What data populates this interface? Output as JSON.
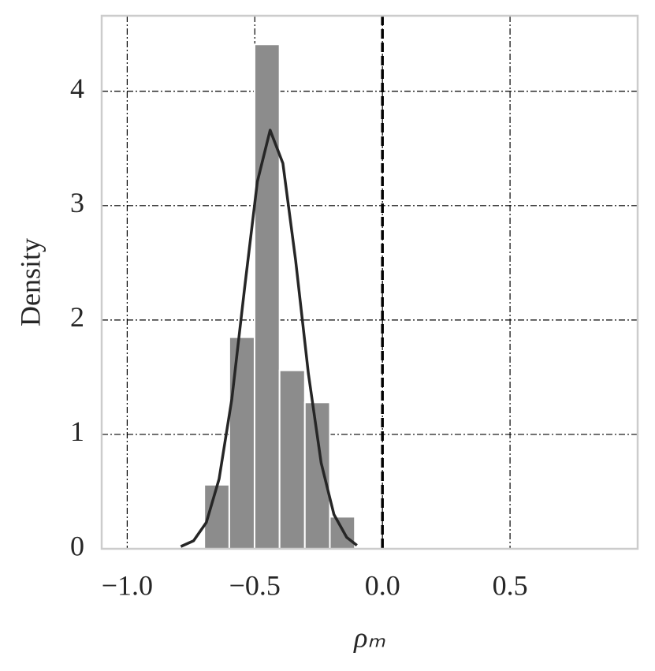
{
  "chart_data": {
    "type": "histogram",
    "xlabel": "ρₘ",
    "ylabel": "Density",
    "bins": [
      -0.698,
      -0.6,
      -0.501,
      -0.403,
      -0.304,
      -0.206,
      -0.108
    ],
    "values": [
      0.56,
      1.85,
      4.41,
      1.56,
      1.28,
      0.28
    ],
    "color": "#8c8c8c",
    "kde": {
      "color": "#262626",
      "x": [
        -0.79,
        -0.74,
        -0.69,
        -0.64,
        -0.59,
        -0.54,
        -0.49,
        -0.44,
        -0.39,
        -0.34,
        -0.29,
        -0.24,
        -0.19,
        -0.14,
        -0.1
      ],
      "values": [
        0.02,
        0.07,
        0.23,
        0.61,
        1.31,
        2.28,
        3.21,
        3.66,
        3.37,
        2.52,
        1.53,
        0.75,
        0.3,
        0.1,
        0.03
      ]
    },
    "reference_line": 0,
    "xlim": [
      -1.1,
      1.0
    ],
    "ylim": [
      0,
      4.66
    ],
    "xticks": [
      {
        "value": -1.0,
        "label": "−1.0"
      },
      {
        "value": -0.5,
        "label": "−0.5"
      },
      {
        "value": 0.0,
        "label": "0.0"
      },
      {
        "value": 0.5,
        "label": "0.5"
      }
    ],
    "yticks": [
      0,
      1,
      2,
      3,
      4
    ],
    "grid": true
  }
}
